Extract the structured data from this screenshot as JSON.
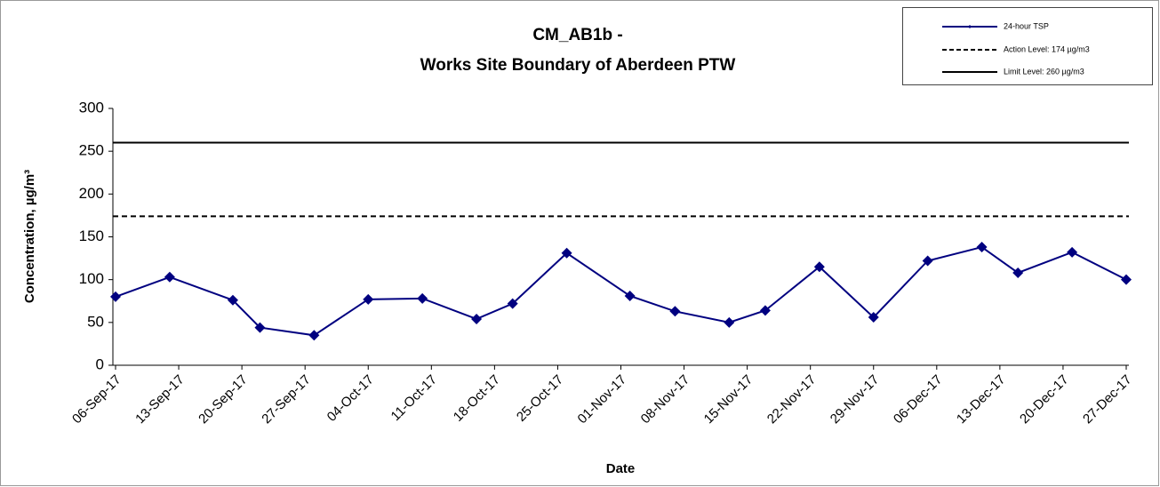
{
  "chart_data": {
    "type": "line",
    "title": [
      "CM_AB1b -",
      "Works Site Boundary of Aberdeen PTW"
    ],
    "x_label": "Date",
    "y_label": "Concentration, µg/m³",
    "x": [
      "2017-09-06",
      "2017-09-12",
      "2017-09-19",
      "2017-09-22",
      "2017-09-28",
      "2017-10-04",
      "2017-10-10",
      "2017-10-16",
      "2017-10-20",
      "2017-10-26",
      "2017-11-02",
      "2017-11-07",
      "2017-11-13",
      "2017-11-17",
      "2017-11-23",
      "2017-11-29",
      "2017-12-05",
      "2017-12-11",
      "2017-12-15",
      "2017-12-21",
      "2017-12-27"
    ],
    "series": [
      {
        "name": "24-hour TSP",
        "color": "#000080",
        "values": [
          80,
          103,
          76,
          44,
          35,
          77,
          78,
          54,
          72,
          131,
          81,
          63,
          50,
          64,
          115,
          56,
          122,
          138,
          108,
          132,
          100
        ]
      }
    ],
    "reference_lines": [
      {
        "name": "Action Level: 174 µg/m3",
        "value": 174,
        "style": "dashed",
        "color": "#000000"
      },
      {
        "name": "Limit Level: 260 µg/m3",
        "value": 260,
        "style": "solid",
        "color": "#000000"
      }
    ],
    "xlim": [
      "2017-09-06",
      "2017-12-27"
    ],
    "xticks": [
      {
        "value": "2017-09-06",
        "label": "06-Sep-17"
      },
      {
        "value": "2017-09-13",
        "label": "13-Sep-17"
      },
      {
        "value": "2017-09-20",
        "label": "20-Sep-17"
      },
      {
        "value": "2017-09-27",
        "label": "27-Sep-17"
      },
      {
        "value": "2017-10-04",
        "label": "04-Oct-17"
      },
      {
        "value": "2017-10-11",
        "label": "11-Oct-17"
      },
      {
        "value": "2017-10-18",
        "label": "18-Oct-17"
      },
      {
        "value": "2017-10-25",
        "label": "25-Oct-17"
      },
      {
        "value": "2017-11-01",
        "label": "01-Nov-17"
      },
      {
        "value": "2017-11-08",
        "label": "08-Nov-17"
      },
      {
        "value": "2017-11-15",
        "label": "15-Nov-17"
      },
      {
        "value": "2017-11-22",
        "label": "22-Nov-17"
      },
      {
        "value": "2017-11-29",
        "label": "29-Nov-17"
      },
      {
        "value": "2017-12-06",
        "label": "06-Dec-17"
      },
      {
        "value": "2017-12-13",
        "label": "13-Dec-17"
      },
      {
        "value": "2017-12-20",
        "label": "20-Dec-17"
      },
      {
        "value": "2017-12-27",
        "label": "27-Dec-17"
      }
    ],
    "ylim": [
      0,
      300
    ],
    "yticks": [
      0,
      50,
      100,
      150,
      200,
      250,
      300
    ],
    "grid": false,
    "legend": "top-right"
  }
}
